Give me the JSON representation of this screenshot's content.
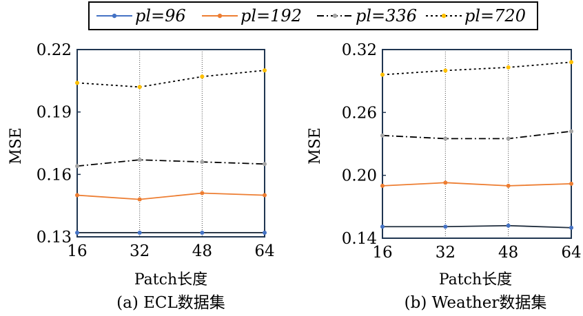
{
  "legend": {
    "items": [
      {
        "label": "pl=96",
        "color": "#4472C4",
        "dash": "solid"
      },
      {
        "label": "pl=192",
        "color": "#ED7D31",
        "dash": "solid"
      },
      {
        "label": "pl=336",
        "color": "#A5A5A5",
        "dash": "dashdot"
      },
      {
        "label": "pl=720",
        "color": "#FFC000",
        "dash": "dotted"
      }
    ]
  },
  "chart_data": [
    {
      "type": "line",
      "caption": "(a) ECL数据集",
      "xlabel": "Patch长度",
      "ylabel": "MSE",
      "x": [
        16,
        32,
        48,
        64
      ],
      "ylim": [
        0.13,
        0.22
      ],
      "yticks": [
        "0.13",
        "0.16",
        "0.19",
        "0.22"
      ],
      "xticks": [
        "16",
        "32",
        "48",
        "64"
      ],
      "grid": "vertical dotted",
      "series": [
        {
          "name": "pl=96",
          "values": [
            0.132,
            0.132,
            0.132,
            0.132
          ]
        },
        {
          "name": "pl=192",
          "values": [
            0.15,
            0.148,
            0.151,
            0.15
          ]
        },
        {
          "name": "pl=336",
          "values": [
            0.164,
            0.167,
            0.166,
            0.165
          ]
        },
        {
          "name": "pl=720",
          "values": [
            0.204,
            0.202,
            0.207,
            0.21
          ]
        }
      ]
    },
    {
      "type": "line",
      "caption": "(b) Weather数据集",
      "xlabel": "Patch长度",
      "ylabel": "MSE",
      "x": [
        16,
        32,
        48,
        64
      ],
      "ylim": [
        0.14,
        0.32
      ],
      "yticks": [
        "0.14",
        "0.20",
        "0.26",
        "0.32"
      ],
      "xticks": [
        "16",
        "32",
        "48",
        "64"
      ],
      "grid": "vertical dotted",
      "series": [
        {
          "name": "pl=96",
          "values": [
            0.151,
            0.151,
            0.152,
            0.15
          ]
        },
        {
          "name": "pl=192",
          "values": [
            0.19,
            0.193,
            0.19,
            0.192
          ]
        },
        {
          "name": "pl=336",
          "values": [
            0.238,
            0.235,
            0.235,
            0.242
          ]
        },
        {
          "name": "pl=720",
          "values": [
            0.296,
            0.3,
            0.303,
            0.308
          ]
        }
      ]
    }
  ]
}
